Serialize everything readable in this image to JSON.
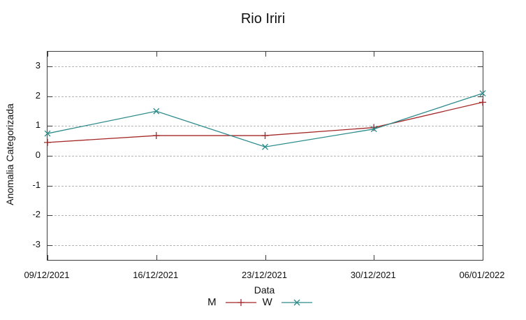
{
  "title": "Rio Iriri",
  "chart_data": {
    "type": "line",
    "title": "Rio Iriri",
    "xlabel": "Data",
    "ylabel": "Anomalia Categorizada",
    "categories": [
      "09/12/2021",
      "16/12/2021",
      "23/12/2021",
      "30/12/2021",
      "06/01/2022"
    ],
    "series": [
      {
        "name": "M",
        "color": "#a52828",
        "marker": "plus",
        "values": [
          0.45,
          0.68,
          0.68,
          0.95,
          1.8
        ]
      },
      {
        "name": "W",
        "color": "#2e8b8b",
        "marker": "cross",
        "values": [
          0.75,
          1.5,
          0.3,
          0.9,
          2.1
        ]
      }
    ],
    "ylim": [
      -3.5,
      3.5
    ],
    "yticks": [
      -3,
      -2,
      -1,
      0,
      1,
      2,
      3
    ],
    "grid": "horizontal-dashed",
    "grid_color": "#b4b4b4",
    "axis_color": "#3c3c3c",
    "legend_position": "bottom-center"
  }
}
